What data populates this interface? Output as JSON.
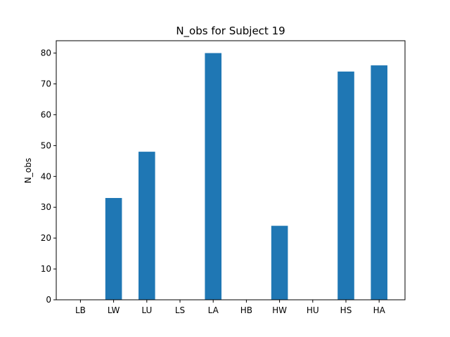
{
  "chart_data": {
    "type": "bar",
    "title": "N_obs for Subject 19",
    "xlabel": "",
    "ylabel": "N_obs",
    "categories": [
      "LB",
      "LW",
      "LU",
      "LS",
      "LA",
      "HB",
      "HW",
      "HU",
      "HS",
      "HA"
    ],
    "values": [
      0,
      33,
      48,
      0,
      80,
      0,
      24,
      0,
      74,
      76
    ],
    "ylim": [
      0,
      84
    ],
    "yticks": [
      0,
      10,
      20,
      30,
      40,
      50,
      60,
      70,
      80
    ],
    "grid": false,
    "bar_color": "#1f77b4"
  }
}
